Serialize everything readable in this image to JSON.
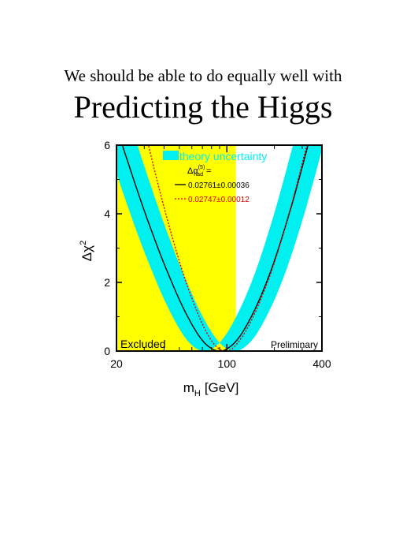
{
  "slide": {
    "subtitle": "We should be able to do equally well with",
    "title": "Predicting the Higgs"
  },
  "chart_data": {
    "type": "line",
    "xlabel_main": "m",
    "xlabel_sub": "H",
    "xlabel_unit": "[GeV]",
    "ylabel_main": "Δχ",
    "ylabel_sup": "2",
    "xscale": "log",
    "xlim": [
      20,
      400
    ],
    "ylim": [
      0,
      6
    ],
    "x_ticks": [
      "20",
      "100",
      "400"
    ],
    "y_ticks": [
      "0",
      "2",
      "4",
      "6"
    ],
    "excluded_region": {
      "x_max": 114,
      "label": "Excluded",
      "color": "#ffff00"
    },
    "preliminary_label": "Preliminary",
    "legend": {
      "band_label": "theory uncertainty",
      "alpha_label": "Δα",
      "alpha_sup": "(5)",
      "alpha_sub": "had",
      "alpha_suffix": "="
    },
    "series": [
      {
        "name": "0.02761±0.00036",
        "color": "#000000",
        "style": "solid",
        "band_color": "#00f0f0",
        "x": [
          20,
          25,
          30,
          35,
          40,
          50,
          60,
          70,
          80,
          90,
          100,
          120,
          150,
          180,
          200,
          250,
          300,
          350,
          400
        ],
        "y": [
          6.53,
          5.16,
          4.09,
          3.24,
          2.55,
          1.5,
          0.78,
          0.31,
          0.07,
          0.0,
          0.06,
          0.41,
          1.2,
          2.05,
          2.63,
          4.05,
          5.36,
          6.55,
          7.64
        ],
        "band_half_width": 0.22
      },
      {
        "name": "0.02747±0.00012",
        "color": "#dd0000",
        "style": "dotted",
        "x": [
          30,
          35,
          40,
          50,
          60,
          70,
          80,
          90,
          100,
          120,
          150,
          180,
          200,
          250,
          300,
          350,
          400
        ],
        "y": [
          6.51,
          5.23,
          4.19,
          2.62,
          1.54,
          0.79,
          0.3,
          0.05,
          0.0,
          0.3,
          1.09,
          1.98,
          2.58,
          4.07,
          5.46,
          6.72,
          7.88
        ]
      }
    ]
  }
}
